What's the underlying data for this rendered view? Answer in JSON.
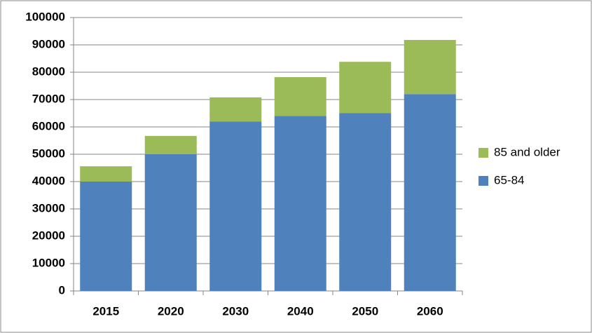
{
  "chart_data": {
    "type": "stacked-bar",
    "categories": [
      "2015",
      "2020",
      "2030",
      "2040",
      "2050",
      "2060"
    ],
    "series": [
      {
        "name": "65-84",
        "color": "#4f81bd",
        "values": [
          40000,
          50000,
          62000,
          64000,
          65000,
          72000
        ]
      },
      {
        "name": "85 and older",
        "color": "#9bbb59",
        "values": [
          5600,
          6700,
          8800,
          14200,
          18800,
          19800
        ]
      }
    ],
    "ylim": [
      0,
      100000
    ],
    "yticks": [
      0,
      10000,
      20000,
      30000,
      40000,
      50000,
      60000,
      70000,
      80000,
      90000,
      100000
    ],
    "grid": true,
    "legend": "right"
  }
}
